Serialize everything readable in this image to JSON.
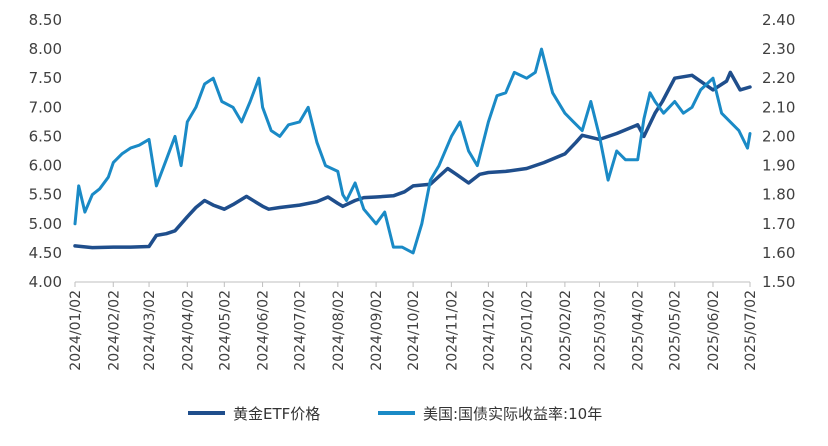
{
  "chart_data": {
    "type": "line",
    "title": "",
    "xlabel": "",
    "ylabel": "",
    "y_left": {
      "ylim": [
        4.0,
        8.5
      ],
      "ticks": [
        "4.00",
        "4.50",
        "5.00",
        "5.50",
        "6.00",
        "6.50",
        "7.00",
        "7.50",
        "8.00",
        "8.50"
      ]
    },
    "y_right": {
      "ylim": [
        1.5,
        2.4
      ],
      "ticks": [
        "1.50",
        "1.60",
        "1.70",
        "1.80",
        "1.90",
        "2.00",
        "2.10",
        "2.20",
        "2.30",
        "2.40"
      ]
    },
    "x_ticks": [
      "2024/01/02",
      "2024/02/02",
      "2024/03/02",
      "2024/04/02",
      "2024/05/02",
      "2024/06/02",
      "2024/07/02",
      "2024/08/02",
      "2024/09/02",
      "2024/10/02",
      "2024/11/02",
      "2024/12/02",
      "2025/01/02",
      "2025/02/02",
      "2025/03/02",
      "2025/04/02",
      "2025/05/02",
      "2025/06/02",
      "2025/07/02"
    ],
    "grid": false,
    "legend_position": "bottom",
    "series": [
      {
        "name": "黄金ETF价格",
        "axis": "left",
        "color": "#1f4e8c",
        "x": [
          "2024/01/02",
          "2024/01/16",
          "2024/02/02",
          "2024/02/16",
          "2024/03/02",
          "2024/03/08",
          "2024/03/16",
          "2024/03/23",
          "2024/04/02",
          "2024/04/09",
          "2024/04/16",
          "2024/04/23",
          "2024/05/02",
          "2024/05/09",
          "2024/05/20",
          "2024/06/02",
          "2024/06/07",
          "2024/06/16",
          "2024/07/02",
          "2024/07/16",
          "2024/07/25",
          "2024/08/02",
          "2024/08/06",
          "2024/08/16",
          "2024/08/23",
          "2024/09/02",
          "2024/09/16",
          "2024/09/25",
          "2024/10/02",
          "2024/10/16",
          "2024/10/30",
          "2024/11/06",
          "2024/11/16",
          "2024/11/25",
          "2024/12/02",
          "2024/12/16",
          "2025/01/02",
          "2025/01/16",
          "2025/02/02",
          "2025/02/11",
          "2025/02/16",
          "2025/03/02",
          "2025/03/16",
          "2025/04/02",
          "2025/04/07",
          "2025/04/16",
          "2025/04/22",
          "2025/05/02",
          "2025/05/16",
          "2025/06/02",
          "2025/06/13",
          "2025/06/16",
          "2025/06/24",
          "2025/07/02"
        ],
        "values": [
          4.62,
          4.59,
          4.6,
          4.6,
          4.61,
          4.8,
          4.83,
          4.88,
          5.12,
          5.28,
          5.4,
          5.32,
          5.25,
          5.33,
          5.47,
          5.3,
          5.25,
          5.28,
          5.32,
          5.38,
          5.46,
          5.35,
          5.3,
          5.4,
          5.45,
          5.46,
          5.48,
          5.55,
          5.65,
          5.68,
          5.95,
          5.85,
          5.7,
          5.85,
          5.88,
          5.9,
          5.95,
          6.05,
          6.2,
          6.4,
          6.52,
          6.45,
          6.55,
          6.7,
          6.5,
          6.9,
          7.1,
          7.5,
          7.55,
          7.3,
          7.45,
          7.6,
          7.3,
          7.35
        ]
      },
      {
        "name": "美国:国债实际收益率:10年",
        "axis": "right",
        "color": "#1a8ac6",
        "x": [
          "2024/01/02",
          "2024/01/05",
          "2024/01/10",
          "2024/01/16",
          "2024/01/22",
          "2024/01/29",
          "2024/02/02",
          "2024/02/09",
          "2024/02/16",
          "2024/02/23",
          "2024/03/02",
          "2024/03/08",
          "2024/03/16",
          "2024/03/23",
          "2024/03/28",
          "2024/04/02",
          "2024/04/09",
          "2024/04/16",
          "2024/04/23",
          "2024/04/30",
          "2024/05/09",
          "2024/05/16",
          "2024/05/23",
          "2024/05/30",
          "2024/06/02",
          "2024/06/09",
          "2024/06/16",
          "2024/06/23",
          "2024/07/02",
          "2024/07/09",
          "2024/07/16",
          "2024/07/23",
          "2024/08/02",
          "2024/08/06",
          "2024/08/09",
          "2024/08/16",
          "2024/08/23",
          "2024/09/02",
          "2024/09/09",
          "2024/09/16",
          "2024/09/23",
          "2024/10/02",
          "2024/10/09",
          "2024/10/16",
          "2024/10/23",
          "2024/11/02",
          "2024/11/09",
          "2024/11/16",
          "2024/11/23",
          "2024/12/02",
          "2024/12/09",
          "2024/12/16",
          "2024/12/23",
          "2025/01/02",
          "2025/01/09",
          "2025/01/14",
          "2025/01/23",
          "2025/02/02",
          "2025/02/09",
          "2025/02/16",
          "2025/02/23",
          "2025/03/02",
          "2025/03/09",
          "2025/03/16",
          "2025/03/23",
          "2025/04/02",
          "2025/04/07",
          "2025/04/12",
          "2025/04/16",
          "2025/04/23",
          "2025/05/02",
          "2025/05/09",
          "2025/05/16",
          "2025/05/23",
          "2025/06/02",
          "2025/06/09",
          "2025/06/16",
          "2025/06/23",
          "2025/06/30",
          "2025/07/02"
        ],
        "values": [
          1.7,
          1.83,
          1.74,
          1.8,
          1.82,
          1.86,
          1.91,
          1.94,
          1.96,
          1.97,
          1.99,
          1.83,
          1.92,
          2.0,
          1.9,
          2.05,
          2.1,
          2.18,
          2.2,
          2.12,
          2.1,
          2.05,
          2.12,
          2.2,
          2.1,
          2.02,
          2.0,
          2.04,
          2.05,
          2.1,
          1.98,
          1.9,
          1.88,
          1.8,
          1.78,
          1.84,
          1.75,
          1.7,
          1.74,
          1.62,
          1.62,
          1.6,
          1.7,
          1.85,
          1.9,
          2.0,
          2.05,
          1.95,
          1.9,
          2.05,
          2.14,
          2.15,
          2.22,
          2.2,
          2.22,
          2.3,
          2.15,
          2.08,
          2.05,
          2.02,
          2.12,
          2.0,
          1.85,
          1.95,
          1.92,
          1.92,
          2.06,
          2.15,
          2.12,
          2.08,
          2.12,
          2.08,
          2.1,
          2.16,
          2.2,
          2.08,
          2.05,
          2.02,
          1.96,
          2.01
        ]
      }
    ]
  }
}
